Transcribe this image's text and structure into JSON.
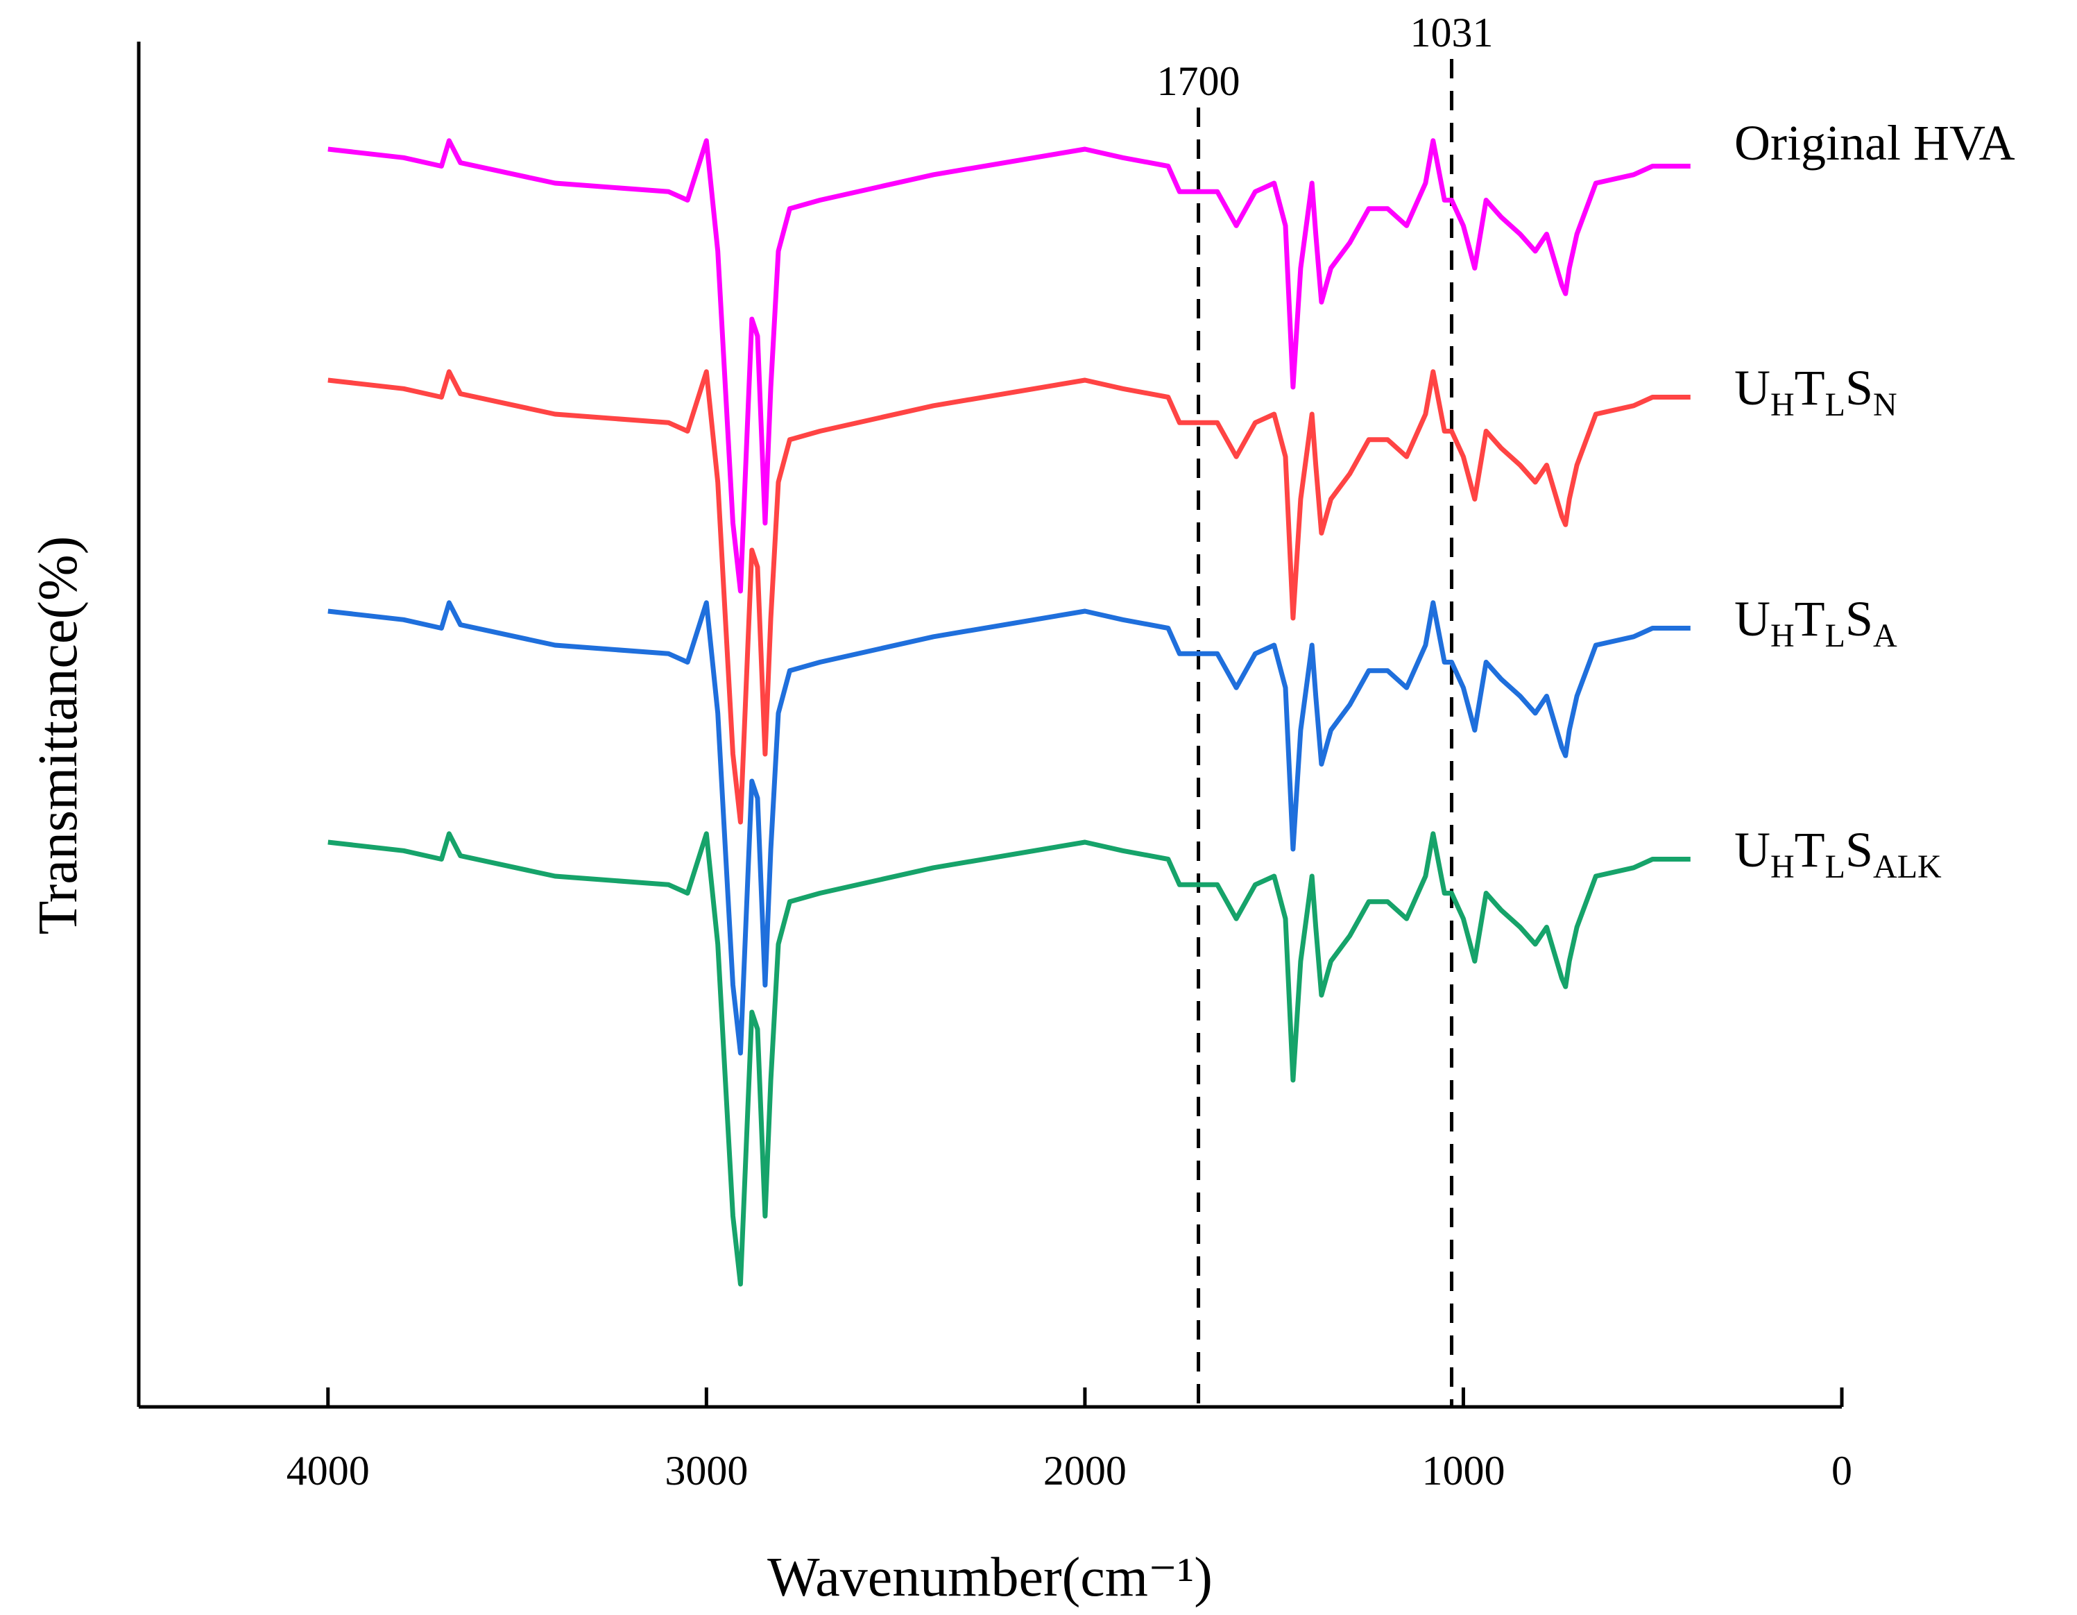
{
  "chart_data": {
    "type": "line",
    "title": "",
    "xlabel": "Wavenumber(cm⁻¹)",
    "ylabel": "Transmittance(%)",
    "xlim": [
      4500,
      0
    ],
    "x_ticks": [
      4000,
      3000,
      2000,
      1000,
      0
    ],
    "x_tick_labels": [
      "4000",
      "3000",
      "2000",
      "1000",
      "0"
    ],
    "y_ticks": [],
    "grid": false,
    "legend_placement": "right, next to each curve",
    "reference_lines": [
      {
        "x": 1700,
        "label": "1700",
        "style": "dashed"
      },
      {
        "x": 1031,
        "label": "1031",
        "style": "dashed"
      }
    ],
    "series": [
      {
        "name": "Original HVA",
        "label_main": "Original HVA",
        "label_parts": [
          {
            "t": "Original HVA",
            "sub": false
          }
        ],
        "color": "#ff00ff",
        "offset": 0,
        "points": [
          [
            4000,
            0
          ],
          [
            3800,
            -0.05
          ],
          [
            3700,
            -0.1
          ],
          [
            3680,
            0.05
          ],
          [
            3650,
            -0.08
          ],
          [
            3400,
            -0.2
          ],
          [
            3100,
            -0.25
          ],
          [
            3050,
            -0.3
          ],
          [
            3000,
            0.05
          ],
          [
            2970,
            -0.6
          ],
          [
            2930,
            -2.2
          ],
          [
            2910,
            -2.6
          ],
          [
            2880,
            -1.0
          ],
          [
            2865,
            -1.1
          ],
          [
            2845,
            -2.2
          ],
          [
            2830,
            -1.4
          ],
          [
            2810,
            -0.6
          ],
          [
            2780,
            -0.35
          ],
          [
            2700,
            -0.3
          ],
          [
            2400,
            -0.15
          ],
          [
            2000,
            0
          ],
          [
            1900,
            -0.05
          ],
          [
            1780,
            -0.1
          ],
          [
            1750,
            -0.25
          ],
          [
            1700,
            -0.25
          ],
          [
            1650,
            -0.25
          ],
          [
            1600,
            -0.45
          ],
          [
            1550,
            -0.25
          ],
          [
            1500,
            -0.2
          ],
          [
            1470,
            -0.45
          ],
          [
            1450,
            -1.4
          ],
          [
            1430,
            -0.7
          ],
          [
            1400,
            -0.2
          ],
          [
            1390,
            -0.5
          ],
          [
            1375,
            -0.9
          ],
          [
            1350,
            -0.7
          ],
          [
            1300,
            -0.55
          ],
          [
            1250,
            -0.35
          ],
          [
            1200,
            -0.35
          ],
          [
            1150,
            -0.45
          ],
          [
            1100,
            -0.2
          ],
          [
            1080,
            0.05
          ],
          [
            1050,
            -0.3
          ],
          [
            1031,
            -0.3
          ],
          [
            1000,
            -0.45
          ],
          [
            970,
            -0.7
          ],
          [
            940,
            -0.3
          ],
          [
            900,
            -0.4
          ],
          [
            850,
            -0.5
          ],
          [
            810,
            -0.6
          ],
          [
            780,
            -0.5
          ],
          [
            740,
            -0.8
          ],
          [
            730,
            -0.85
          ],
          [
            720,
            -0.7
          ],
          [
            700,
            -0.5
          ],
          [
            650,
            -0.2
          ],
          [
            550,
            -0.15
          ],
          [
            500,
            -0.1
          ],
          [
            400,
            -0.1
          ]
        ]
      },
      {
        "name": "UHTLSN",
        "label_main": "U",
        "label_parts": [
          {
            "t": "U",
            "sub": false
          },
          {
            "t": "H",
            "sub": true
          },
          {
            "t": "T",
            "sub": false
          },
          {
            "t": "L",
            "sub": true
          },
          {
            "t": "S",
            "sub": false
          },
          {
            "t": "N",
            "sub": true
          }
        ],
        "color": "#ff4444",
        "offset": -1,
        "points": [
          [
            4000,
            0
          ],
          [
            3800,
            -0.05
          ],
          [
            3700,
            -0.1
          ],
          [
            3680,
            0.05
          ],
          [
            3650,
            -0.08
          ],
          [
            3400,
            -0.2
          ],
          [
            3100,
            -0.25
          ],
          [
            3050,
            -0.3
          ],
          [
            3000,
            0.05
          ],
          [
            2970,
            -0.6
          ],
          [
            2930,
            -2.2
          ],
          [
            2910,
            -2.6
          ],
          [
            2880,
            -1.0
          ],
          [
            2865,
            -1.1
          ],
          [
            2845,
            -2.2
          ],
          [
            2830,
            -1.4
          ],
          [
            2810,
            -0.6
          ],
          [
            2780,
            -0.35
          ],
          [
            2700,
            -0.3
          ],
          [
            2400,
            -0.15
          ],
          [
            2000,
            0
          ],
          [
            1900,
            -0.05
          ],
          [
            1780,
            -0.1
          ],
          [
            1750,
            -0.25
          ],
          [
            1700,
            -0.25
          ],
          [
            1650,
            -0.25
          ],
          [
            1600,
            -0.45
          ],
          [
            1550,
            -0.25
          ],
          [
            1500,
            -0.2
          ],
          [
            1470,
            -0.45
          ],
          [
            1450,
            -1.4
          ],
          [
            1430,
            -0.7
          ],
          [
            1400,
            -0.2
          ],
          [
            1390,
            -0.5
          ],
          [
            1375,
            -0.9
          ],
          [
            1350,
            -0.7
          ],
          [
            1300,
            -0.55
          ],
          [
            1250,
            -0.35
          ],
          [
            1200,
            -0.35
          ],
          [
            1150,
            -0.45
          ],
          [
            1100,
            -0.2
          ],
          [
            1080,
            0.05
          ],
          [
            1050,
            -0.3
          ],
          [
            1031,
            -0.3
          ],
          [
            1000,
            -0.45
          ],
          [
            970,
            -0.7
          ],
          [
            940,
            -0.3
          ],
          [
            900,
            -0.4
          ],
          [
            850,
            -0.5
          ],
          [
            810,
            -0.6
          ],
          [
            780,
            -0.5
          ],
          [
            740,
            -0.8
          ],
          [
            730,
            -0.85
          ],
          [
            720,
            -0.7
          ],
          [
            700,
            -0.5
          ],
          [
            650,
            -0.2
          ],
          [
            550,
            -0.15
          ],
          [
            500,
            -0.1
          ],
          [
            400,
            -0.1
          ]
        ]
      },
      {
        "name": "UHTLSA",
        "label_main": "U",
        "label_parts": [
          {
            "t": "U",
            "sub": false
          },
          {
            "t": "H",
            "sub": true
          },
          {
            "t": "T",
            "sub": false
          },
          {
            "t": "L",
            "sub": true
          },
          {
            "t": "S",
            "sub": false
          },
          {
            "t": "A",
            "sub": true
          }
        ],
        "color": "#1f6fdc",
        "offset": -2,
        "points": [
          [
            4000,
            0
          ],
          [
            3800,
            -0.05
          ],
          [
            3700,
            -0.1
          ],
          [
            3680,
            0.05
          ],
          [
            3650,
            -0.08
          ],
          [
            3400,
            -0.2
          ],
          [
            3100,
            -0.25
          ],
          [
            3050,
            -0.3
          ],
          [
            3000,
            0.05
          ],
          [
            2970,
            -0.6
          ],
          [
            2930,
            -2.2
          ],
          [
            2910,
            -2.6
          ],
          [
            2880,
            -1.0
          ],
          [
            2865,
            -1.1
          ],
          [
            2845,
            -2.2
          ],
          [
            2830,
            -1.4
          ],
          [
            2810,
            -0.6
          ],
          [
            2780,
            -0.35
          ],
          [
            2700,
            -0.3
          ],
          [
            2400,
            -0.15
          ],
          [
            2000,
            0
          ],
          [
            1900,
            -0.05
          ],
          [
            1780,
            -0.1
          ],
          [
            1750,
            -0.25
          ],
          [
            1700,
            -0.25
          ],
          [
            1650,
            -0.25
          ],
          [
            1600,
            -0.45
          ],
          [
            1550,
            -0.25
          ],
          [
            1500,
            -0.2
          ],
          [
            1470,
            -0.45
          ],
          [
            1450,
            -1.4
          ],
          [
            1430,
            -0.7
          ],
          [
            1400,
            -0.2
          ],
          [
            1390,
            -0.5
          ],
          [
            1375,
            -0.9
          ],
          [
            1350,
            -0.7
          ],
          [
            1300,
            -0.55
          ],
          [
            1250,
            -0.35
          ],
          [
            1200,
            -0.35
          ],
          [
            1150,
            -0.45
          ],
          [
            1100,
            -0.2
          ],
          [
            1080,
            0.05
          ],
          [
            1050,
            -0.3
          ],
          [
            1031,
            -0.3
          ],
          [
            1000,
            -0.45
          ],
          [
            970,
            -0.7
          ],
          [
            940,
            -0.3
          ],
          [
            900,
            -0.4
          ],
          [
            850,
            -0.5
          ],
          [
            810,
            -0.6
          ],
          [
            780,
            -0.5
          ],
          [
            740,
            -0.8
          ],
          [
            730,
            -0.85
          ],
          [
            720,
            -0.7
          ],
          [
            700,
            -0.5
          ],
          [
            650,
            -0.2
          ],
          [
            550,
            -0.15
          ],
          [
            500,
            -0.1
          ],
          [
            400,
            -0.1
          ]
        ]
      },
      {
        "name": "UHTLSALK",
        "label_main": "U",
        "label_parts": [
          {
            "t": "U",
            "sub": false
          },
          {
            "t": "H",
            "sub": true
          },
          {
            "t": "T",
            "sub": false
          },
          {
            "t": "L",
            "sub": true
          },
          {
            "t": "S",
            "sub": false
          },
          {
            "t": "ALK",
            "sub": true
          }
        ],
        "color": "#16a36a",
        "offset": -3,
        "points": [
          [
            4000,
            0
          ],
          [
            3800,
            -0.05
          ],
          [
            3700,
            -0.1
          ],
          [
            3680,
            0.05
          ],
          [
            3650,
            -0.08
          ],
          [
            3400,
            -0.2
          ],
          [
            3100,
            -0.25
          ],
          [
            3050,
            -0.3
          ],
          [
            3000,
            0.05
          ],
          [
            2970,
            -0.6
          ],
          [
            2930,
            -2.2
          ],
          [
            2910,
            -2.6
          ],
          [
            2880,
            -1.0
          ],
          [
            2865,
            -1.1
          ],
          [
            2845,
            -2.2
          ],
          [
            2830,
            -1.4
          ],
          [
            2810,
            -0.6
          ],
          [
            2780,
            -0.35
          ],
          [
            2700,
            -0.3
          ],
          [
            2400,
            -0.15
          ],
          [
            2000,
            0
          ],
          [
            1900,
            -0.05
          ],
          [
            1780,
            -0.1
          ],
          [
            1750,
            -0.25
          ],
          [
            1700,
            -0.25
          ],
          [
            1650,
            -0.25
          ],
          [
            1600,
            -0.45
          ],
          [
            1550,
            -0.25
          ],
          [
            1500,
            -0.2
          ],
          [
            1470,
            -0.45
          ],
          [
            1450,
            -1.4
          ],
          [
            1430,
            -0.7
          ],
          [
            1400,
            -0.2
          ],
          [
            1390,
            -0.5
          ],
          [
            1375,
            -0.9
          ],
          [
            1350,
            -0.7
          ],
          [
            1300,
            -0.55
          ],
          [
            1250,
            -0.35
          ],
          [
            1200,
            -0.35
          ],
          [
            1150,
            -0.45
          ],
          [
            1100,
            -0.2
          ],
          [
            1080,
            0.05
          ],
          [
            1050,
            -0.3
          ],
          [
            1031,
            -0.3
          ],
          [
            1000,
            -0.45
          ],
          [
            970,
            -0.7
          ],
          [
            940,
            -0.3
          ],
          [
            900,
            -0.4
          ],
          [
            850,
            -0.5
          ],
          [
            810,
            -0.6
          ],
          [
            780,
            -0.5
          ],
          [
            740,
            -0.8
          ],
          [
            730,
            -0.85
          ],
          [
            720,
            -0.7
          ],
          [
            700,
            -0.5
          ],
          [
            650,
            -0.2
          ],
          [
            550,
            -0.15
          ],
          [
            500,
            -0.1
          ],
          [
            400,
            -0.1
          ]
        ]
      }
    ]
  }
}
